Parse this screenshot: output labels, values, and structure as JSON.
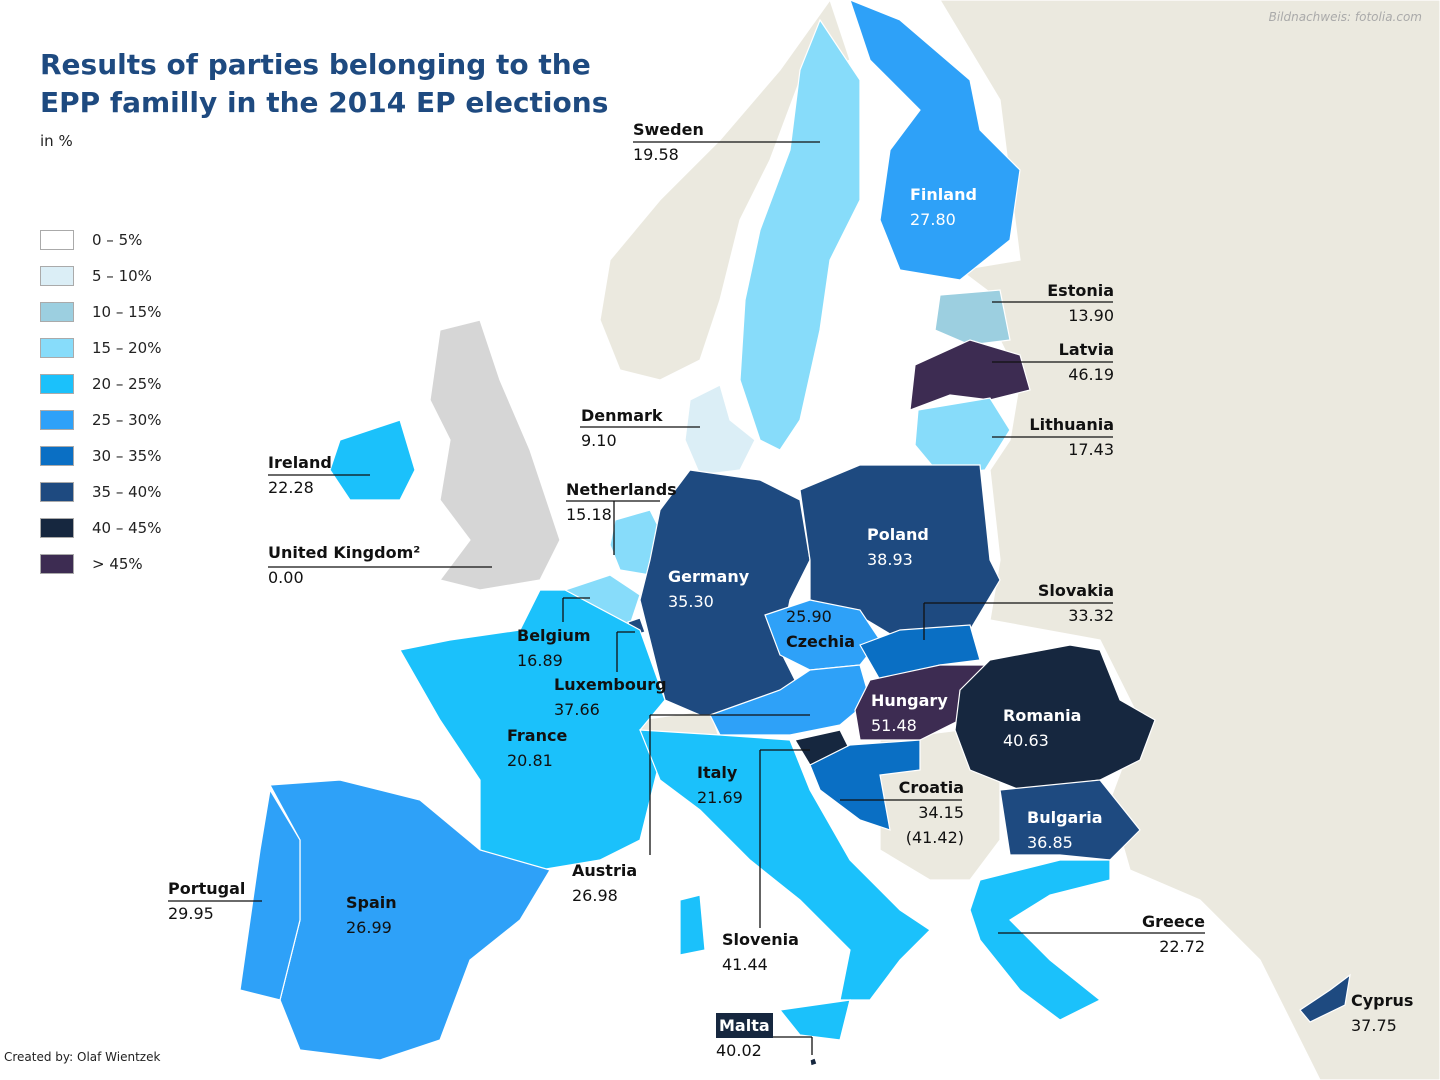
{
  "title": "Results of parties belonging to the EPP familly in the 2014 EP elections",
  "unit": "in %",
  "credit": "Bildnachweis: fotolia.com",
  "creator": "Created by: Olaf Wientzek",
  "legend": [
    {
      "label": "0 – 5%",
      "color": "#ffffff"
    },
    {
      "label": "5 – 10%",
      "color": "#dbeef6"
    },
    {
      "label": "10 – 15%",
      "color": "#9ccfe0"
    },
    {
      "label": "15 – 20%",
      "color": "#87dcfa"
    },
    {
      "label": "20 – 25%",
      "color": "#1bc1fb"
    },
    {
      "label": "25 – 30%",
      "color": "#2ea1f8"
    },
    {
      "label": "30 – 35%",
      "color": "#0a6fc4"
    },
    {
      "label": "35 – 40%",
      "color": "#1e4a80"
    },
    {
      "label": "40 – 45%",
      "color": "#16273f"
    },
    {
      "label": "> 45%",
      "color": "#3d2c52"
    }
  ],
  "colors": {
    "non_eu": "#ebe9df",
    "no_data": "#d6d6d6"
  },
  "countries": {
    "sweden": {
      "name": "Sweden",
      "value": "19.58",
      "color": "#87dcfa"
    },
    "finland": {
      "name": "Finland",
      "value": "27.80",
      "color": "#2ea1f8"
    },
    "estonia": {
      "name": "Estonia",
      "value": "13.90",
      "color": "#9ccfe0"
    },
    "latvia": {
      "name": "Latvia",
      "value": "46.19",
      "color": "#3d2c52"
    },
    "lithuania": {
      "name": "Lithuania",
      "value": "17.43",
      "color": "#87dcfa"
    },
    "denmark": {
      "name": "Denmark",
      "value": "9.10",
      "color": "#dbeef6"
    },
    "ireland": {
      "name": "Ireland",
      "value": "22.28",
      "color": "#1bc1fb"
    },
    "netherlands": {
      "name": "Netherlands",
      "value": "15.18",
      "color": "#87dcfa"
    },
    "uk": {
      "name": "United Kingdom²",
      "value": "0.00",
      "color": "#d6d6d6"
    },
    "poland": {
      "name": "Poland",
      "value": "38.93",
      "color": "#1e4a80"
    },
    "germany": {
      "name": "Germany",
      "value": "35.30",
      "color": "#1e4a80"
    },
    "slovakia": {
      "name": "Slovakia",
      "value": "33.32",
      "color": "#0a6fc4"
    },
    "czechia": {
      "name": "Czechia",
      "value": "25.90",
      "color": "#2ea1f8"
    },
    "belgium": {
      "name": "Belgium",
      "value": "16.89",
      "color": "#87dcfa"
    },
    "luxembourg": {
      "name": "Luxembourg",
      "value": "37.66",
      "color": "#1e4a80"
    },
    "hungary": {
      "name": "Hungary",
      "value": "51.48",
      "color": "#3d2c52"
    },
    "romania": {
      "name": "Romania",
      "value": "40.63",
      "color": "#16273f"
    },
    "france": {
      "name": "France",
      "value": "20.81",
      "color": "#1bc1fb"
    },
    "italy": {
      "name": "Italy",
      "value": "21.69",
      "color": "#1bc1fb"
    },
    "croatia": {
      "name": "Croatia",
      "value": "34.15 (41.42)",
      "color": "#0a6fc4"
    },
    "bulgaria": {
      "name": "Bulgaria",
      "value": "36.85",
      "color": "#1e4a80"
    },
    "portugal": {
      "name": "Portugal",
      "value": "29.95",
      "color": "#2ea1f8"
    },
    "austria": {
      "name": "Austria",
      "value": "26.98",
      "color": "#2ea1f8"
    },
    "spain": {
      "name": "Spain",
      "value": "26.99",
      "color": "#2ea1f8"
    },
    "greece": {
      "name": "Greece",
      "value": "22.72",
      "color": "#1bc1fb"
    },
    "slovenia": {
      "name": "Slovenia",
      "value": "41.44",
      "color": "#16273f"
    },
    "cyprus": {
      "name": "Cyprus",
      "value": "37.75",
      "color": "#1e4a80"
    },
    "malta": {
      "name": "Malta",
      "value": "40.02",
      "color": "#16273f"
    }
  }
}
